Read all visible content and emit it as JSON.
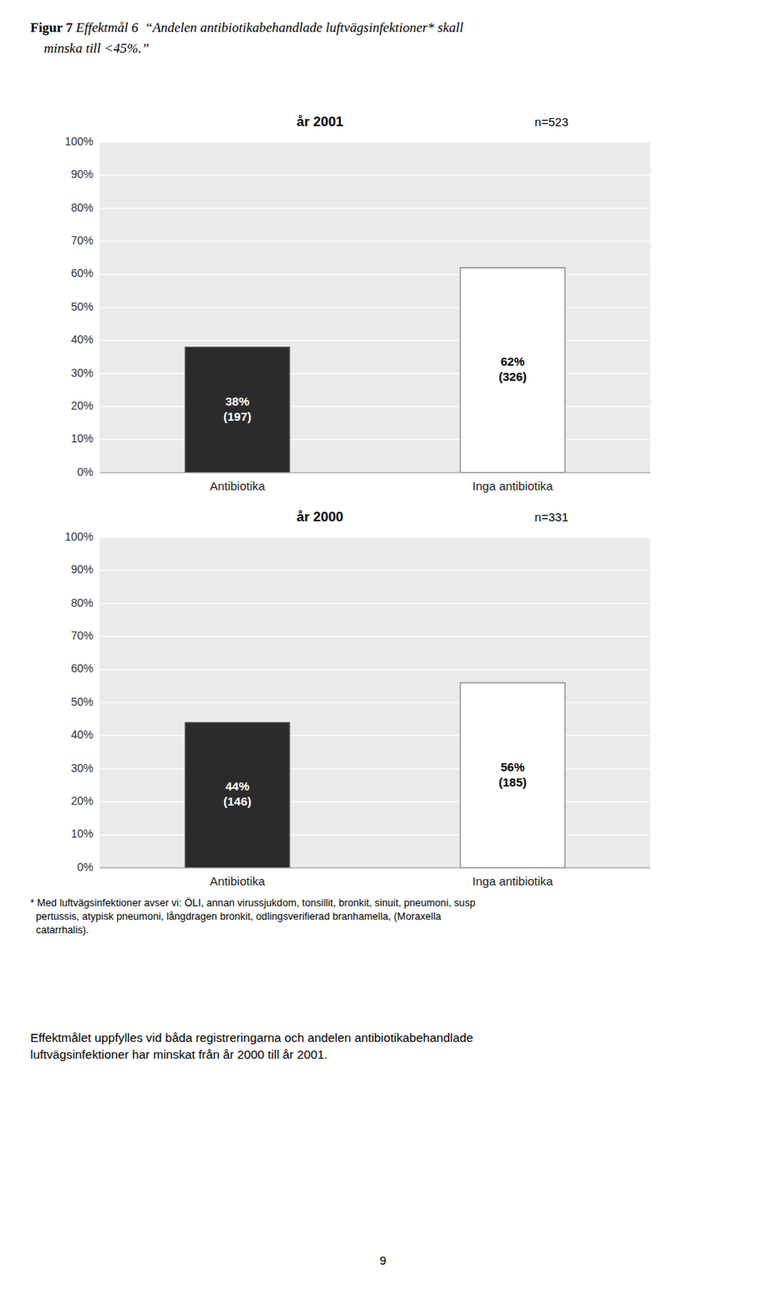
{
  "figure_label": "Figur 7",
  "title": " Effektmål 6  “Andelen antibiotikabehandlade luftvägsinfektioner* skall",
  "title_line2": "    minska till <45%.”",
  "chart_data": [
    {
      "type": "bar",
      "title": "år 2001",
      "subtitle": "n=523",
      "categories": [
        "Antibiotika",
        "Inga antibiotika"
      ],
      "values": [
        38,
        62
      ],
      "value_labels": [
        "38%\n(197)",
        "62%\n(326)"
      ],
      "data_labels": true,
      "colors": [
        "#2b2b2b",
        "#ffffff"
      ],
      "ylim": [
        0,
        100
      ],
      "yticks": [
        {
          "value": 0,
          "label": "0%"
        },
        {
          "value": 10,
          "label": "10%"
        },
        {
          "value": 20,
          "label": "20%"
        },
        {
          "value": 30,
          "label": "30%"
        },
        {
          "value": 40,
          "label": "40%"
        },
        {
          "value": 50,
          "label": "50%"
        },
        {
          "value": 60,
          "label": "60%"
        },
        {
          "value": 70,
          "label": "70%"
        },
        {
          "value": 80,
          "label": "80%"
        },
        {
          "value": 90,
          "label": "90%"
        },
        {
          "value": 100,
          "label": "100%"
        }
      ],
      "grid": true
    },
    {
      "type": "bar",
      "title": "år 2000",
      "subtitle": "n=331",
      "categories": [
        "Antibiotika",
        "Inga antibiotika"
      ],
      "values": [
        44,
        56
      ],
      "value_labels": [
        "44%\n(146)",
        "56%\n(185)"
      ],
      "data_labels": true,
      "colors": [
        "#2b2b2b",
        "#ffffff"
      ],
      "ylim": [
        0,
        100
      ],
      "yticks": [
        {
          "value": 0,
          "label": "0%"
        },
        {
          "value": 10,
          "label": "10%"
        },
        {
          "value": 20,
          "label": "20%"
        },
        {
          "value": 30,
          "label": "30%"
        },
        {
          "value": 40,
          "label": "40%"
        },
        {
          "value": 50,
          "label": "50%"
        },
        {
          "value": 60,
          "label": "60%"
        },
        {
          "value": 70,
          "label": "70%"
        },
        {
          "value": 80,
          "label": "80%"
        },
        {
          "value": 90,
          "label": "90%"
        },
        {
          "value": 100,
          "label": "100%"
        }
      ],
      "grid": true
    }
  ],
  "footnote": [
    "* Med luftvägsinfektioner avser vi: ÖLI, annan virussjukdom, tonsillit, bronkit, sinuit, pneumoni, susp",
    "  pertussis, atypisk pneumoni, långdragen bronkit, odlingsverifierad branhamella, (Moraxella",
    "  catarrhalis)."
  ],
  "conclusion": [
    "Effektmålet uppfylles vid båda registreringarna och andelen antibiotikabehandlade",
    "luftvägsinfektioner har minskat från år 2000 till år 2001."
  ],
  "page_number": "9"
}
